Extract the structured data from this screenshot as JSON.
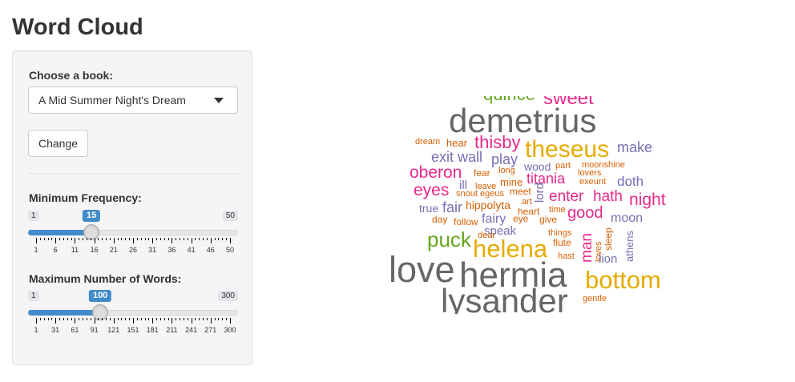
{
  "page": {
    "title": "Word Cloud"
  },
  "sidebar": {
    "book": {
      "label": "Choose a book:",
      "selected": "A Mid Summer Night's Dream"
    },
    "change_button": "Change",
    "min_freq": {
      "label": "Minimum Frequency:",
      "min": "1",
      "max": "50",
      "value": "15",
      "value_num": 15,
      "min_num": 1,
      "max_num": 50,
      "ticks": [
        "1",
        "6",
        "11",
        "16",
        "21",
        "26",
        "31",
        "36",
        "41",
        "46",
        "50"
      ]
    },
    "max_words": {
      "label": "Maximum Number of Words:",
      "min": "1",
      "max": "300",
      "value": "100",
      "value_num": 100,
      "min_num": 1,
      "max_num": 300,
      "ticks": [
        "1",
        "31",
        "61",
        "91",
        "121",
        "151",
        "181",
        "211",
        "241",
        "271",
        "300"
      ]
    }
  },
  "colors": {
    "accent": "#428bca",
    "gray": "#666666",
    "gold": "#e6ab02",
    "magenta": "#e7298a",
    "purple": "#7570b3",
    "orange": "#d95f02",
    "green": "#66a61e"
  },
  "cloud_words": [
    {
      "w": "demetrius",
      "c": "gray"
    },
    {
      "w": "sweet",
      "c": "magenta"
    },
    {
      "w": "thisby",
      "c": "magenta"
    },
    {
      "w": "theseus",
      "c": "gold"
    },
    {
      "w": "make",
      "c": "purple"
    },
    {
      "w": "dream",
      "c": "orange"
    },
    {
      "w": "hear",
      "c": "orange"
    },
    {
      "w": "exit",
      "c": "purple"
    },
    {
      "w": "wall",
      "c": "purple"
    },
    {
      "w": "play",
      "c": "purple"
    },
    {
      "w": "wood",
      "c": "purple"
    },
    {
      "w": "part",
      "c": "orange"
    },
    {
      "w": "moonshine",
      "c": "orange"
    },
    {
      "w": "oberon",
      "c": "magenta"
    },
    {
      "w": "fear",
      "c": "orange"
    },
    {
      "w": "long",
      "c": "orange"
    },
    {
      "w": "titania",
      "c": "magenta"
    },
    {
      "w": "lovers",
      "c": "orange"
    },
    {
      "w": "doth",
      "c": "purple"
    },
    {
      "w": "ill",
      "c": "purple"
    },
    {
      "w": "leave",
      "c": "orange"
    },
    {
      "w": "mine",
      "c": "orange"
    },
    {
      "w": "exeunt",
      "c": "orange"
    },
    {
      "w": "eyes",
      "c": "magenta"
    },
    {
      "w": "snout",
      "c": "orange"
    },
    {
      "w": "egeus",
      "c": "orange"
    },
    {
      "w": "meet",
      "c": "orange"
    },
    {
      "w": "lord",
      "c": "purple"
    },
    {
      "w": "enter",
      "c": "magenta"
    },
    {
      "w": "hath",
      "c": "magenta"
    },
    {
      "w": "night",
      "c": "magenta"
    },
    {
      "w": "true",
      "c": "purple"
    },
    {
      "w": "fair",
      "c": "purple"
    },
    {
      "w": "hippolyta",
      "c": "orange"
    },
    {
      "w": "art",
      "c": "orange"
    },
    {
      "w": "time",
      "c": "orange"
    },
    {
      "w": "day",
      "c": "orange"
    },
    {
      "w": "follow",
      "c": "orange"
    },
    {
      "w": "fairy",
      "c": "purple"
    },
    {
      "w": "eye",
      "c": "orange"
    },
    {
      "w": "heart",
      "c": "orange"
    },
    {
      "w": "give",
      "c": "orange"
    },
    {
      "w": "good",
      "c": "magenta"
    },
    {
      "w": "moon",
      "c": "purple"
    },
    {
      "w": "speak",
      "c": "purple"
    },
    {
      "w": "puck",
      "c": "green"
    },
    {
      "w": "dear",
      "c": "orange"
    },
    {
      "w": "things",
      "c": "orange"
    },
    {
      "w": "man",
      "c": "magenta"
    },
    {
      "w": "loves",
      "c": "orange"
    },
    {
      "w": "sleep",
      "c": "orange"
    },
    {
      "w": "athens",
      "c": "purple"
    },
    {
      "w": "helena",
      "c": "gold"
    },
    {
      "w": "flute",
      "c": "orange"
    },
    {
      "w": "hast",
      "c": "orange"
    },
    {
      "w": "lion",
      "c": "purple"
    },
    {
      "w": "love",
      "c": "gray"
    },
    {
      "w": "hermia",
      "c": "gray"
    },
    {
      "w": "bottom",
      "c": "gold"
    },
    {
      "w": "lysander",
      "c": "gray"
    },
    {
      "w": "gentle",
      "c": "orange"
    },
    {
      "w": "quince",
      "c": "green"
    }
  ]
}
